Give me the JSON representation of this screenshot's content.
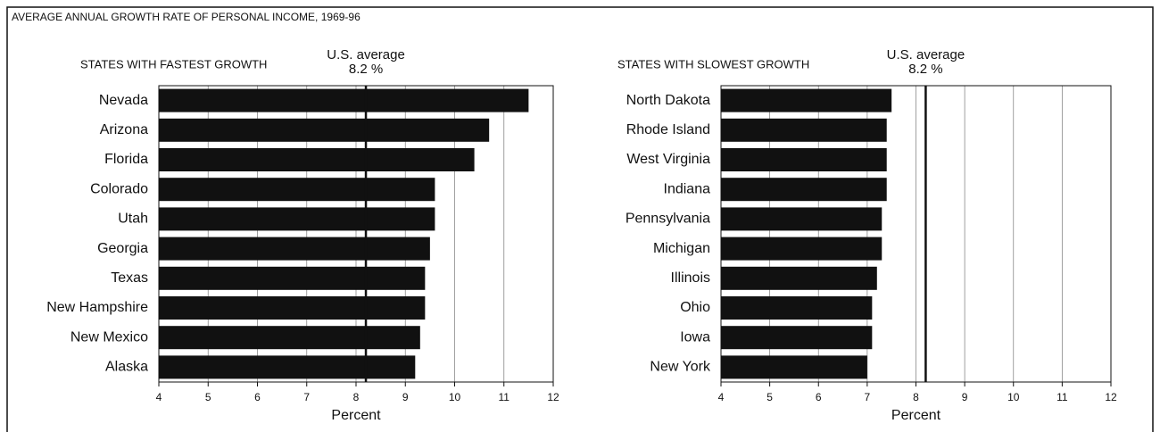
{
  "title": "AVERAGE ANNUAL GROWTH RATE OF PERSONAL INCOME, 1969-96",
  "chart_data": [
    {
      "type": "bar",
      "orientation": "horizontal",
      "title": "STATES WITH FASTEST GROWTH",
      "categories": [
        "Nevada",
        "Arizona",
        "Florida",
        "Colorado",
        "Utah",
        "Georgia",
        "Texas",
        "New Hampshire",
        "New Mexico",
        "Alaska"
      ],
      "values": [
        11.5,
        10.7,
        10.4,
        9.6,
        9.6,
        9.5,
        9.4,
        9.4,
        9.3,
        9.2
      ],
      "color": "#111111",
      "xlabel": "Percent",
      "xlim": [
        4,
        12
      ],
      "xticks": [
        4,
        5,
        6,
        7,
        8,
        9,
        10,
        11,
        12
      ],
      "grid": true,
      "reference": {
        "label": "U.S. average",
        "value": 8.2,
        "value_label": "8.2 %"
      }
    },
    {
      "type": "bar",
      "orientation": "horizontal",
      "title": "STATES WITH SLOWEST GROWTH",
      "categories": [
        "North Dakota",
        "Rhode Island",
        "West Virginia",
        "Indiana",
        "Pennsylvania",
        "Michigan",
        "Illinois",
        "Ohio",
        "Iowa",
        "New York"
      ],
      "values": [
        7.5,
        7.4,
        7.4,
        7.4,
        7.3,
        7.3,
        7.2,
        7.1,
        7.1,
        7.0
      ],
      "color": "#111111",
      "xlabel": "Percent",
      "xlim": [
        4,
        12
      ],
      "xticks": [
        4,
        5,
        6,
        7,
        8,
        9,
        10,
        11,
        12
      ],
      "grid": true,
      "reference": {
        "label": "U.S. average",
        "value": 8.2,
        "value_label": "8.2 %"
      }
    }
  ]
}
